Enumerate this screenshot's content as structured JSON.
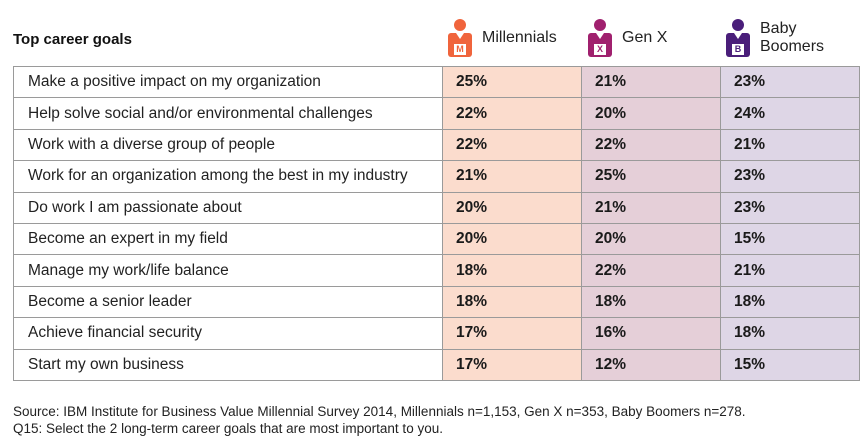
{
  "chart_data": {
    "type": "table",
    "title": "Top career goals",
    "columns": [
      {
        "name": "Millennials",
        "icon_letter": "M",
        "color": "#f0643c",
        "bg": "#fbdccd"
      },
      {
        "name": "Gen X",
        "icon_letter": "X",
        "color": "#a0206e",
        "bg": "#e5cfd8"
      },
      {
        "name": "Baby Boomers",
        "name_lines": [
          "Baby",
          "Boomers"
        ],
        "icon_letter": "B",
        "color": "#4a1e7a",
        "bg": "#ded6e6"
      }
    ],
    "rows": [
      {
        "goal": "Make a positive impact on my organization",
        "values": [
          "25%",
          "21%",
          "23%"
        ]
      },
      {
        "goal": "Help solve social and/or environmental challenges",
        "values": [
          "22%",
          "20%",
          "24%"
        ]
      },
      {
        "goal": "Work with a diverse group of people",
        "values": [
          "22%",
          "22%",
          "21%"
        ]
      },
      {
        "goal": "Work for an organization among the best in my industry",
        "values": [
          "21%",
          "25%",
          "23%"
        ]
      },
      {
        "goal": "Do work I am passionate about",
        "values": [
          "20%",
          "21%",
          "23%"
        ]
      },
      {
        "goal": "Become an expert in my field",
        "values": [
          "20%",
          "20%",
          "15%"
        ]
      },
      {
        "goal": "Manage my work/life balance",
        "values": [
          "18%",
          "22%",
          "21%"
        ]
      },
      {
        "goal": "Become a senior leader",
        "values": [
          "18%",
          "18%",
          "18%"
        ]
      },
      {
        "goal": "Achieve financial security",
        "values": [
          "17%",
          "16%",
          "18%"
        ]
      },
      {
        "goal": "Start my own business",
        "values": [
          "17%",
          "12%",
          "15%"
        ]
      }
    ],
    "notes": [
      "Source: IBM Institute for Business Value Millennial Survey 2014, Millennials n=1,153, Gen X n=353, Baby Boomers n=278.",
      "Q15: Select the 2 long-term career goals that are most important to you."
    ]
  }
}
